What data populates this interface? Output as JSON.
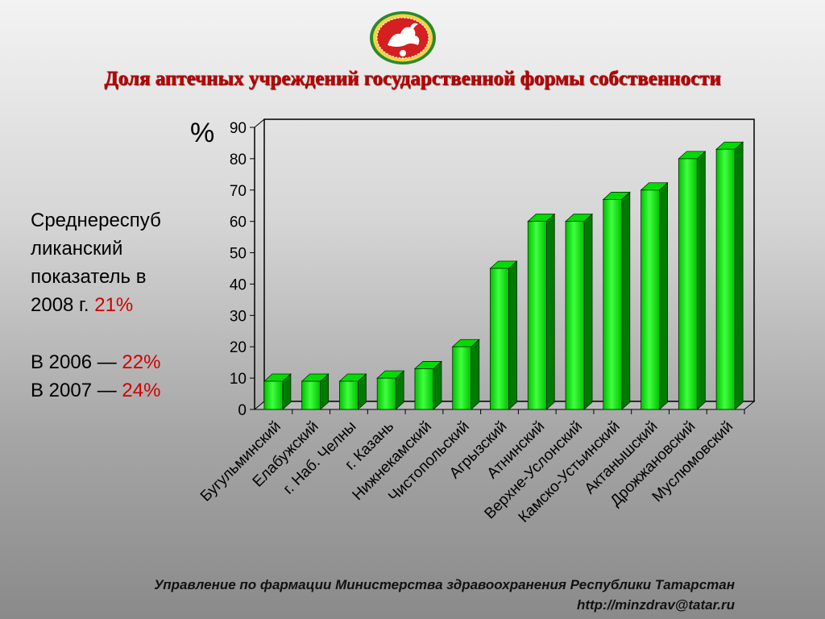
{
  "header": {
    "title": "Доля аптечных учреждений государственной формы собственности",
    "emblem": "tatarstan-emblem-icon"
  },
  "side_text": {
    "line1": "Среднереспуб",
    "line2": "ликанский",
    "line3": "показатель в",
    "line4_prefix": "2008 г. ",
    "line4_value": "21%",
    "line5_prefix": "В 2006 — ",
    "line5_value": "22%",
    "line6_prefix": "В 2007 — ",
    "line6_value": "24%"
  },
  "footer": {
    "line1": "Управление по фармации Министерства здравоохранения Республики Татарстан",
    "line2": "http://minzdrav@tatar.ru"
  },
  "colors": {
    "bar_front": "#00c000",
    "bar_highlight": "#40ff40",
    "bar_side": "#007a00",
    "bar_top": "#00dd00",
    "title": "#c00000",
    "highlight_text": "#d00000"
  },
  "chart_data": {
    "type": "bar",
    "title": "Доля аптечных учреждений государственной формы собственности",
    "ylabel": "%",
    "xlabel": "",
    "ylim": [
      0,
      90
    ],
    "yticks": [
      0,
      10,
      20,
      30,
      40,
      50,
      60,
      70,
      80,
      90
    ],
    "grid": false,
    "legend": "none",
    "categories": [
      "Бугульминский",
      "Елабужский",
      "г. Наб. Челны",
      "г. Казань",
      "Нижнекамский",
      "Чистопольский",
      "Агрызский",
      "Атнинский",
      "Верхне-Услонский",
      "Камско-Устьинский",
      "Актанышский",
      "Дрожжановский",
      "Муслюмовский"
    ],
    "values": [
      9,
      9,
      9,
      10,
      13,
      20,
      45,
      60,
      60,
      67,
      70,
      80,
      83
    ]
  }
}
